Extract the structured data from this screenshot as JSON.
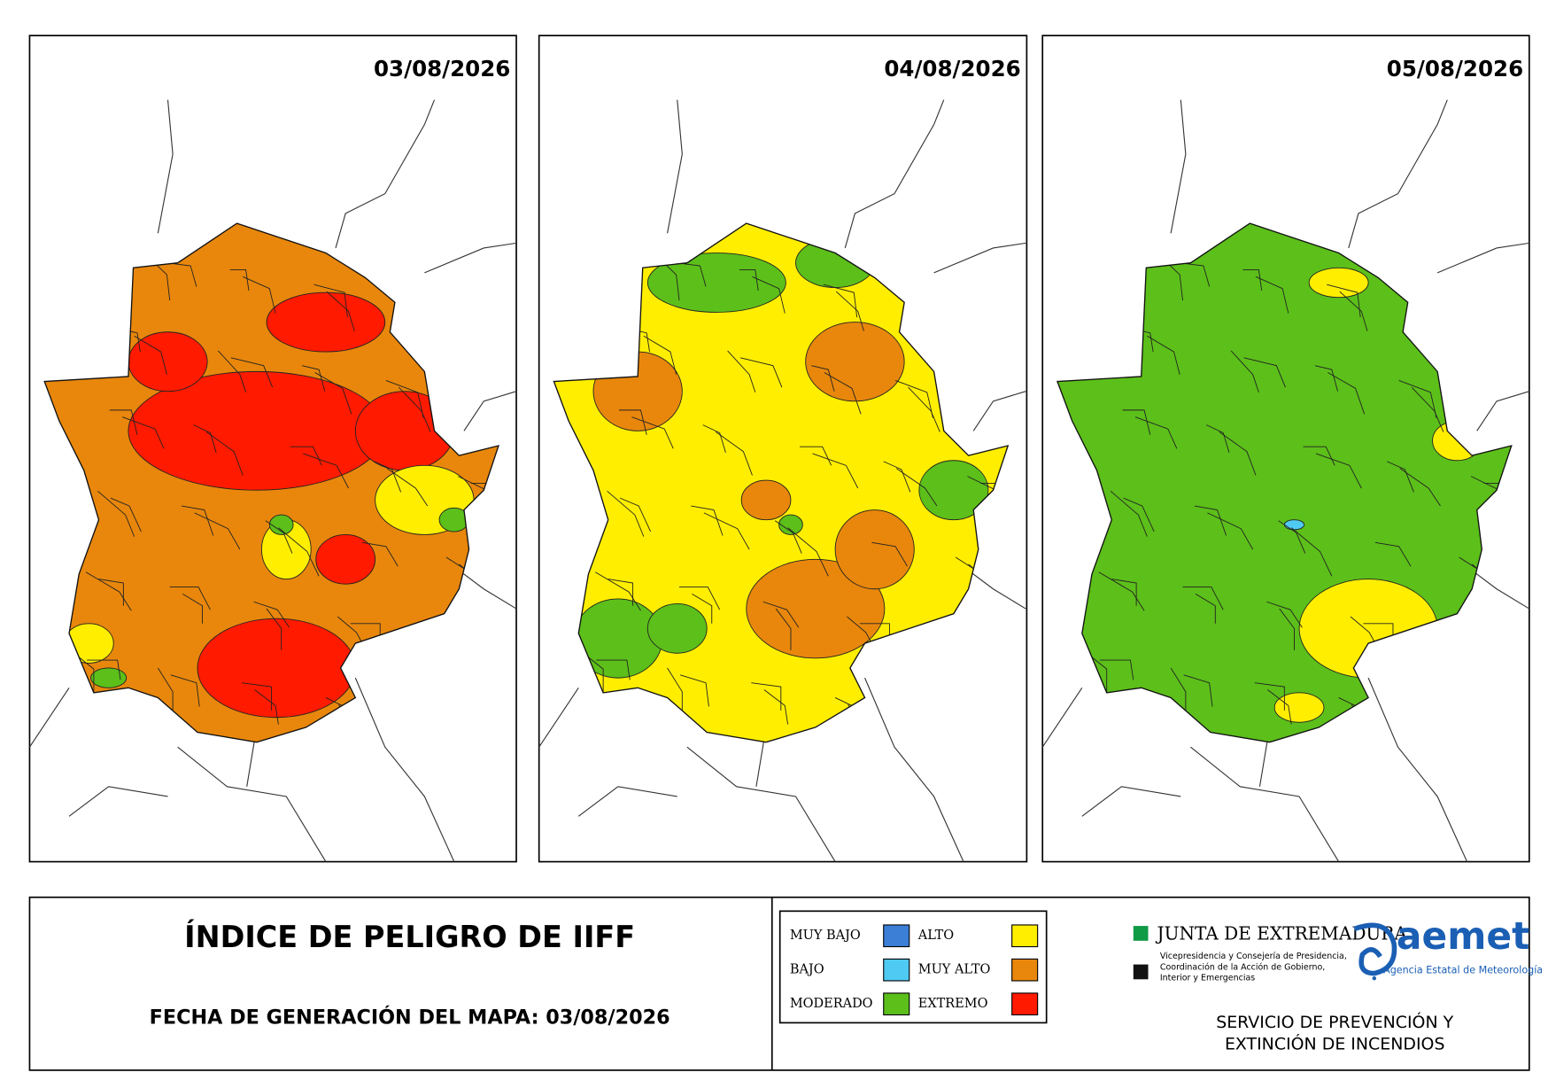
{
  "maps": [
    {
      "date": "03/08/2026"
    },
    {
      "date": "04/08/2026"
    },
    {
      "date": "05/08/2026"
    }
  ],
  "title": "ÍNDICE DE PELIGRO DE IIFF",
  "generation": "FECHA DE GENERACIÓN DEL MAPA: 03/08/2026",
  "legend": [
    {
      "label": "MUY BAJO",
      "color": "#3b7fd6"
    },
    {
      "label": "BAJO",
      "color": "#4fcaf2"
    },
    {
      "label": "MODERADO",
      "color": "#5cbf1a"
    },
    {
      "label": "ALTO",
      "color": "#ffee00"
    },
    {
      "label": "MUY ALTO",
      "color": "#e8870c"
    },
    {
      "label": "EXTREMO",
      "color": "#ff1a00"
    }
  ],
  "logos": {
    "junta": "JUNTA DE EXTREMADURA",
    "junta_sub": [
      "Vicepresidencia y Consejería de Presidencia,",
      "Coordinación de la Acción de Gobierno,",
      "Interior y Emergencias"
    ],
    "aemet": "aemet",
    "aemet_sub": "Agencia Estatal de Meteorología"
  },
  "service": [
    "SERVICIO DE PREVENCIÓN Y",
    "EXTINCIÓN DE INCENDIOS"
  ]
}
